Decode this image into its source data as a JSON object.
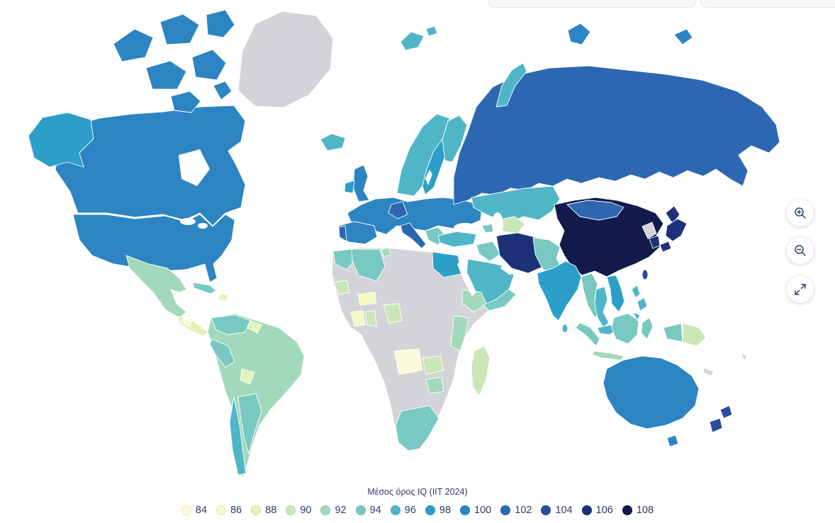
{
  "legend": {
    "title": "Μέσος όρος IQ (IIT 2024)",
    "items": [
      {
        "value": "84",
        "color": "#fcfbd9"
      },
      {
        "value": "86",
        "color": "#f4f9c6"
      },
      {
        "value": "88",
        "color": "#e4f3b9"
      },
      {
        "value": "90",
        "color": "#c9e7b7"
      },
      {
        "value": "92",
        "color": "#a2d9ba"
      },
      {
        "value": "94",
        "color": "#77c9c2"
      },
      {
        "value": "96",
        "color": "#4fb6c8"
      },
      {
        "value": "98",
        "color": "#2c9fc9"
      },
      {
        "value": "100",
        "color": "#2c85c2"
      },
      {
        "value": "102",
        "color": "#2d67b2"
      },
      {
        "value": "104",
        "color": "#284d9e"
      },
      {
        "value": "106",
        "color": "#1c3177"
      },
      {
        "value": "108",
        "color": "#111a4b"
      }
    ]
  },
  "controls": {
    "zoom_in_icon": "magnifier-plus",
    "zoom_out_icon": "magnifier-minus",
    "fullscreen_icon": "expand-arrows"
  },
  "map": {
    "no_data_color": "#d3d4d8",
    "ocean_color": "#ffffff",
    "border_color": "#ffffff",
    "regions": {
      "greenland": "nd",
      "canada": "100",
      "alaska": "98",
      "usa": "100",
      "mexico": "92",
      "central_america": "88",
      "ca_patch": "84",
      "cuba": "94",
      "hispaniola": "88",
      "south_america": "92",
      "colombia_venezuela": "94",
      "peru": "94",
      "chile": "96",
      "argentina": "94",
      "guyana": "88",
      "bolivia_paraguay": "88",
      "iceland": "96",
      "uk": "100",
      "ireland": "98",
      "norway": "96",
      "sweden": "98",
      "finland": "96",
      "svalbard": "96",
      "europe": "100",
      "germany": "102",
      "iberia": "100",
      "portugal": "102",
      "italy": "102",
      "balkans": "94",
      "russia": "102",
      "novaya_zemlya": "96",
      "severnaya_zemlya": "100",
      "arctic_island": "100",
      "central_asia": "96",
      "uzbekistan": "90",
      "turkey": "96",
      "caucasus": "94",
      "iraq_syria": "94",
      "iran": "106",
      "saudi_arabia": "96",
      "yemen_oman": "94",
      "af_pak": "94",
      "india": "98",
      "sri_lanka": "96",
      "china": "108",
      "mongolia": "102",
      "taiwan": "104",
      "north_korea": "nd",
      "south_korea": "106",
      "japan": "106",
      "myanmar": "94",
      "thailand": "96",
      "vietnam": "98",
      "malaysia": "96",
      "sumatra": "94",
      "java": "92",
      "borneo": "94",
      "sulawesi": "94",
      "lesser_sunda": "nd",
      "png_west": "94",
      "png_east": "90",
      "philippines": "96",
      "australia": "100",
      "tasmania": "100",
      "new_zealand": "104",
      "new_caledonia": "nd",
      "fiji": "nd",
      "africa": "nd",
      "morocco": "94",
      "algeria": "94",
      "tunisia": "92",
      "egypt": "98",
      "senegal": "90",
      "sahel_patch": "86",
      "ivory_coast": "86",
      "ghana": "90",
      "nigeria": "90",
      "ethiopia": "92",
      "kenya_tanzania": "92",
      "angola": "84",
      "zambia": "90",
      "zimbabwe_botswana": "92",
      "south_africa": "94",
      "madagascar": "90"
    }
  }
}
